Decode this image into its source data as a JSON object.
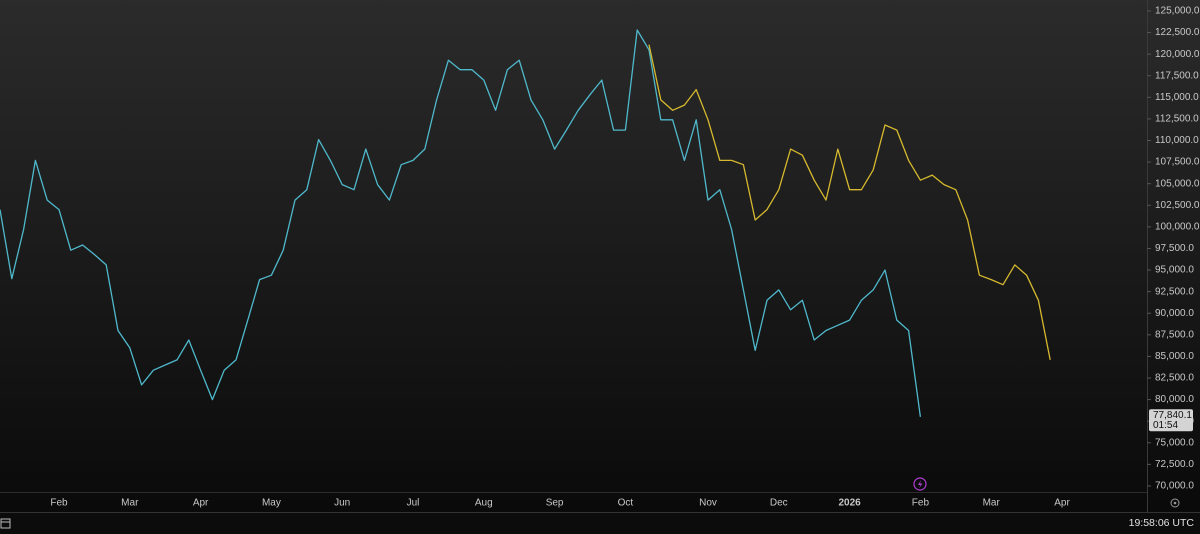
{
  "chart_data": {
    "type": "line",
    "categories": [
      null,
      null,
      null,
      null,
      null,
      "Feb",
      null,
      null,
      null,
      null,
      null,
      "Mar",
      null,
      null,
      null,
      null,
      null,
      "Apr",
      null,
      null,
      null,
      null,
      null,
      "May",
      null,
      null,
      null,
      null,
      null,
      "Jun",
      null,
      null,
      null,
      null,
      null,
      "Jul",
      null,
      null,
      null,
      null,
      null,
      "Aug",
      null,
      null,
      null,
      null,
      null,
      "Sep",
      null,
      null,
      null,
      null,
      null,
      "Oct",
      null,
      null,
      null,
      null,
      null,
      null,
      "Nov",
      null,
      null,
      null,
      null,
      null,
      "Dec",
      null,
      null,
      null,
      null,
      null,
      "2026",
      null,
      null,
      null,
      null,
      null,
      "Feb",
      null,
      null,
      null,
      null,
      null,
      "Mar",
      null,
      null,
      null,
      null,
      null,
      "Apr",
      null,
      null,
      null,
      null,
      null,
      null
    ],
    "series": [
      {
        "color": "#4fb9cc",
        "values": [
          102000,
          94000,
          99700,
          107700,
          103100,
          102000,
          97300,
          97900,
          96800,
          95600,
          88000,
          86000,
          81700,
          83400,
          84000,
          84600,
          86900,
          83400,
          80000,
          83400,
          84600,
          89200,
          93900,
          94400,
          97300,
          103100,
          104300,
          110100,
          107700,
          104900,
          104300,
          109000,
          104900,
          103100,
          107200,
          107700,
          109000,
          114700,
          119300,
          118200,
          118200,
          117000,
          113500,
          118200,
          119300,
          114700,
          112400,
          109000,
          111200,
          113500,
          115300,
          117000,
          111200,
          111200,
          122800,
          120500,
          112400,
          112400,
          107700,
          112400,
          103100,
          104300,
          99700,
          92700,
          85700,
          91500,
          92700,
          90400,
          91500,
          86900,
          88000,
          88600,
          89200,
          91500,
          92700,
          95000,
          89200,
          88000,
          78000,
          null,
          null,
          null,
          null,
          null,
          null,
          null,
          null,
          null,
          null,
          null,
          null,
          null,
          null,
          null,
          null,
          null,
          null
        ]
      },
      {
        "color": "#d6b92e",
        "values": [
          null,
          null,
          null,
          null,
          null,
          null,
          null,
          null,
          null,
          null,
          null,
          null,
          null,
          null,
          null,
          null,
          null,
          null,
          null,
          null,
          null,
          null,
          null,
          null,
          null,
          null,
          null,
          null,
          null,
          null,
          null,
          null,
          null,
          null,
          null,
          null,
          null,
          null,
          null,
          null,
          null,
          null,
          null,
          null,
          null,
          null,
          null,
          null,
          null,
          null,
          null,
          null,
          null,
          null,
          null,
          121100,
          114700,
          113500,
          114100,
          115900,
          112400,
          107700,
          107700,
          107200,
          100800,
          102000,
          104300,
          109000,
          108300,
          105400,
          103100,
          109000,
          104300,
          104300,
          106600,
          111800,
          111200,
          107700,
          105400,
          106000,
          104900,
          104300,
          100800,
          94400,
          93900,
          93300,
          95600,
          94400,
          91500,
          84600,
          null,
          null,
          null,
          null,
          null,
          null,
          null
        ]
      }
    ],
    "ylim": [
      69300,
      126270
    ],
    "yticks": [
      {
        "value": 70000,
        "label": "70,000.0"
      },
      {
        "value": 72500,
        "label": "72,500.0"
      },
      {
        "value": 75000,
        "label": "75,000.0"
      },
      {
        "value": 77500,
        "label": "77,500.0"
      },
      {
        "value": 80000,
        "label": "80,000.0"
      },
      {
        "value": 82500,
        "label": "82,500.0"
      },
      {
        "value": 85000,
        "label": "85,000.0"
      },
      {
        "value": 87500,
        "label": "87,500.0"
      },
      {
        "value": 90000,
        "label": "90,000.0"
      },
      {
        "value": 92500,
        "label": "92,500.0"
      },
      {
        "value": 95000,
        "label": "95,000.0"
      },
      {
        "value": 97500,
        "label": "97,500.0"
      },
      {
        "value": 100000,
        "label": "100,000.0"
      },
      {
        "value": 102500,
        "label": "102,500.0"
      },
      {
        "value": 105000,
        "label": "105,000.0"
      },
      {
        "value": 107500,
        "label": "107,500.0"
      },
      {
        "value": 110000,
        "label": "110,000.0"
      },
      {
        "value": 112500,
        "label": "112,500.0"
      },
      {
        "value": 115000,
        "label": "115,000.0"
      },
      {
        "value": 117500,
        "label": "117,500.0"
      },
      {
        "value": 120000,
        "label": "120,000.0"
      },
      {
        "value": 122500,
        "label": "122,500.0"
      },
      {
        "value": 125000,
        "label": "125,000.0"
      }
    ],
    "grid": false,
    "last_price": {
      "value": 77840.1,
      "label": "77,840.1"
    },
    "countdown": "01:54",
    "clock": "19:58:06 UTC"
  }
}
